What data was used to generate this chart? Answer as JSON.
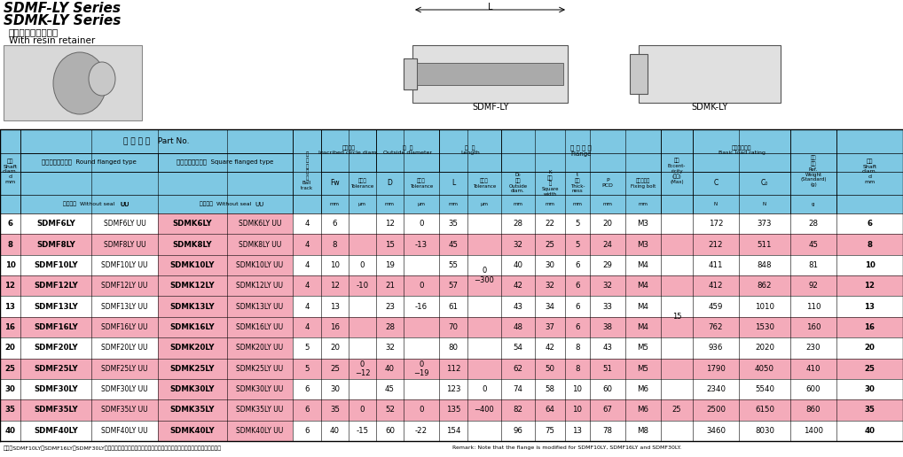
{
  "title_line1": "SDMF-LY Series",
  "title_line2": "SDMK-LY Series",
  "subtitle1": "ナイロン保持器付き",
  "subtitle2": "With resin retainer",
  "header_bg": "#7EC8E3",
  "pink_bg": "#F4ABBA",
  "white_bg": "#FFFFFF",
  "footnote_left": "備考　SDMF10LY、SDMF16LY、SDMF30LYは、モデルチェンジしたフランジを渡用致しておりますのでご注意ください。",
  "footnote_right": "Remark: Note that the flange is modified for SDMF10LY, SDMF16LY and SDMF30LY.",
  "rows": [
    {
      "d": "6",
      "c1": "SDMF6LY",
      "c2": "SDMF6LY UU",
      "c3": "SDMK6LY",
      "c4": "SDMK6LY UU",
      "ball": "4",
      "fw": "6",
      "fw_tol": "",
      "D": "12",
      "D_tol": "0",
      "L": "35",
      "L_tol": "",
      "D0": "28",
      "K": "22",
      "t": "5",
      "P": "20",
      "bolt": "M3",
      "C": "172",
      "C0": "373",
      "wt": "28",
      "pink": false
    },
    {
      "d": "8",
      "c1": "SDMF8LY",
      "c2": "SDMF8LY UU",
      "c3": "SDMK8LY",
      "c4": "SDMK8LY UU",
      "ball": "4",
      "fw": "8",
      "fw_tol": "",
      "D": "15",
      "D_tol": "-13",
      "L": "45",
      "L_tol": "",
      "D0": "32",
      "K": "25",
      "t": "5",
      "P": "24",
      "bolt": "M3",
      "C": "212",
      "C0": "511",
      "wt": "45",
      "pink": true
    },
    {
      "d": "10",
      "c1": "SDMF10LY",
      "c2": "SDMF10LY UU",
      "c3": "SDMK10LY",
      "c4": "SDMK10LY UU",
      "ball": "4",
      "fw": "10",
      "fw_tol": "0",
      "D": "19",
      "D_tol": "",
      "L": "55",
      "L_tol": "",
      "D0": "40",
      "K": "30",
      "t": "6",
      "P": "29",
      "bolt": "M4",
      "C": "411",
      "C0": "848",
      "wt": "81",
      "pink": false
    },
    {
      "d": "12",
      "c1": "SDMF12LY",
      "c2": "SDMF12LY UU",
      "c3": "SDMK12LY",
      "c4": "SDMK12LY UU",
      "ball": "4",
      "fw": "12",
      "fw_tol": "-10",
      "D": "21",
      "D_tol": "0",
      "L": "57",
      "L_tol": "",
      "D0": "42",
      "K": "32",
      "t": "6",
      "P": "32",
      "bolt": "M4",
      "C": "412",
      "C0": "862",
      "wt": "92",
      "pink": true
    },
    {
      "d": "13",
      "c1": "SDMF13LY",
      "c2": "SDMF13LY UU",
      "c3": "SDMK13LY",
      "c4": "SDMK13LY UU",
      "ball": "4",
      "fw": "13",
      "fw_tol": "",
      "D": "23",
      "D_tol": "-16",
      "L": "61",
      "L_tol": "",
      "D0": "43",
      "K": "34",
      "t": "6",
      "P": "33",
      "bolt": "M4",
      "C": "459",
      "C0": "1010",
      "wt": "110",
      "pink": false
    },
    {
      "d": "16",
      "c1": "SDMF16LY",
      "c2": "SDMF16LY UU",
      "c3": "SDMK16LY",
      "c4": "SDMK16LY UU",
      "ball": "4",
      "fw": "16",
      "fw_tol": "",
      "D": "28",
      "D_tol": "",
      "L": "70",
      "L_tol": "",
      "D0": "48",
      "K": "37",
      "t": "6",
      "P": "38",
      "bolt": "M4",
      "C": "762",
      "C0": "1530",
      "wt": "160",
      "pink": true
    },
    {
      "d": "20",
      "c1": "SDMF20LY",
      "c2": "SDMF20LY UU",
      "c3": "SDMK20LY",
      "c4": "SDMK20LY UU",
      "ball": "5",
      "fw": "20",
      "fw_tol": "",
      "D": "32",
      "D_tol": "",
      "L": "80",
      "L_tol": "",
      "D0": "54",
      "K": "42",
      "t": "8",
      "P": "43",
      "bolt": "M5",
      "C": "936",
      "C0": "2020",
      "wt": "230",
      "pink": false
    },
    {
      "d": "25",
      "c1": "SDMF25LY",
      "c2": "SDMF25LY UU",
      "c3": "SDMK25LY",
      "c4": "SDMK25LY UU",
      "ball": "5",
      "fw": "25",
      "fw_tol": "",
      "D": "40",
      "D_tol": "",
      "L": "112",
      "L_tol": "",
      "D0": "62",
      "K": "50",
      "t": "8",
      "P": "51",
      "bolt": "M5",
      "C": "1790",
      "C0": "4050",
      "wt": "410",
      "pink": true
    },
    {
      "d": "30",
      "c1": "SDMF30LY",
      "c2": "SDMF30LY UU",
      "c3": "SDMK30LY",
      "c4": "SDMK30LY UU",
      "ball": "6",
      "fw": "30",
      "fw_tol": "",
      "D": "45",
      "D_tol": "",
      "L": "123",
      "L_tol": "0",
      "D0": "74",
      "K": "58",
      "t": "10",
      "P": "60",
      "bolt": "M6",
      "C": "2340",
      "C0": "5540",
      "wt": "600",
      "pink": false
    },
    {
      "d": "35",
      "c1": "SDMF35LY",
      "c2": "SDMF35LY UU",
      "c3": "SDMK35LY",
      "c4": "SDMK35LY UU",
      "ball": "6",
      "fw": "35",
      "fw_tol": "0",
      "D": "52",
      "D_tol": "0",
      "L": "135",
      "L_tol": "",
      "D0": "82",
      "K": "64",
      "t": "10",
      "P": "67",
      "bolt": "M6",
      "C": "2500",
      "C0": "6150",
      "wt": "860",
      "pink": true
    },
    {
      "d": "40",
      "c1": "SDMF40LY",
      "c2": "SDMF40LY UU",
      "c3": "SDMK40LY",
      "c4": "SDMK40LY UU",
      "ball": "6",
      "fw": "40",
      "fw_tol": "-15",
      "D": "60",
      "D_tol": "-22",
      "L": "154",
      "L_tol": "",
      "D0": "96",
      "K": "75",
      "t": "13",
      "P": "78",
      "bolt": "M8",
      "C": "3460",
      "C0": "8030",
      "wt": "1400",
      "pink": false
    }
  ]
}
